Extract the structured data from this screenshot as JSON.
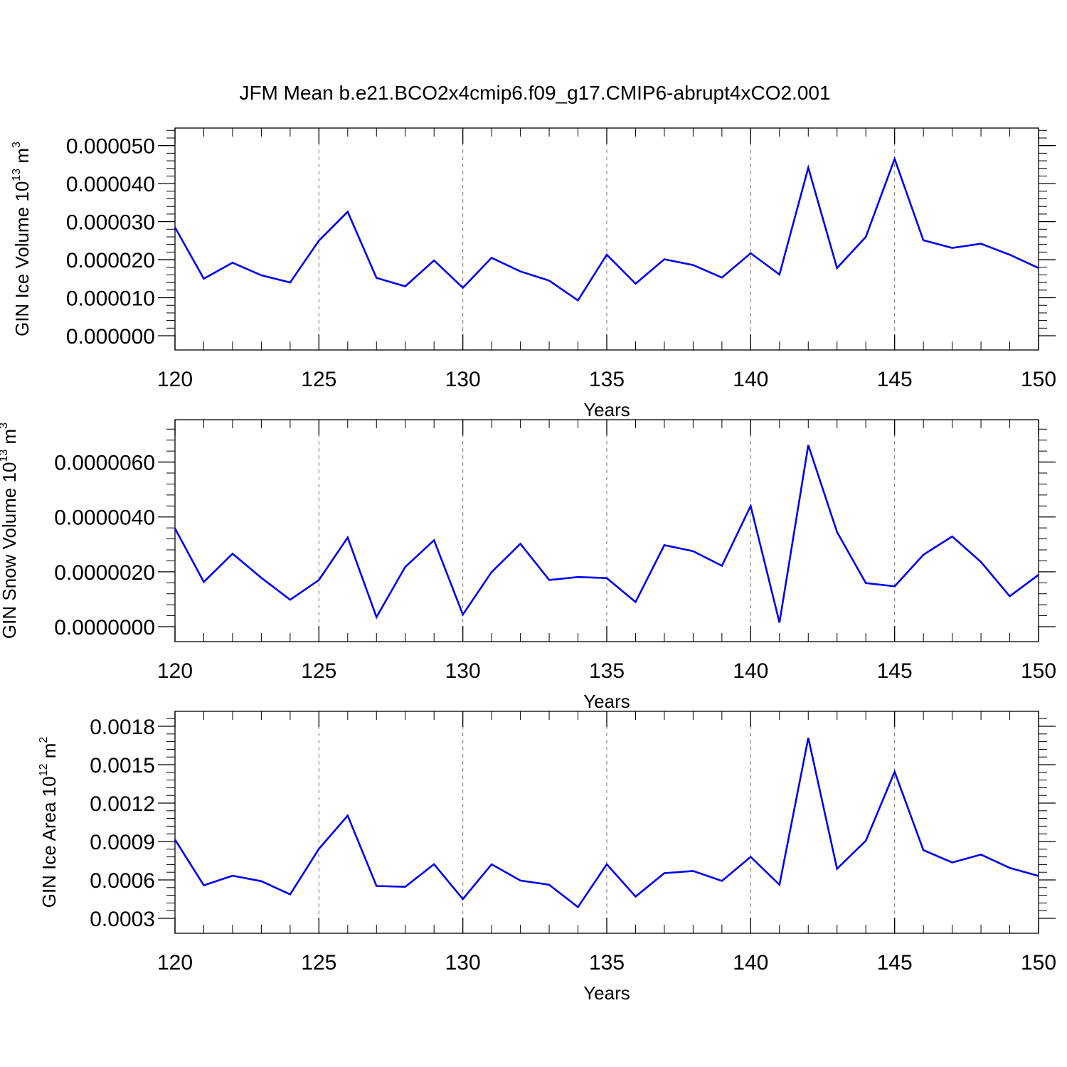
{
  "title": "JFM Mean b.e21.BCO2x4cmip6.f09_g17.CMIP6-abrupt4xCO2.001",
  "chart_data": [
    {
      "type": "line",
      "xlabel": "Years",
      "ylabel": "GIN Ice Volume 10",
      "ylabel_exp": "13",
      "ylabel_unit": " m",
      "ylabel_unit_exp": "3",
      "xlim": [
        120,
        150
      ],
      "ylim": [
        0.0,
        5.05e-05
      ],
      "xticks": [
        120,
        125,
        130,
        135,
        140,
        145,
        150
      ],
      "xtick_labels": [
        "120",
        "125",
        "130",
        "135",
        "140",
        "145",
        "150"
      ],
      "yticks": [
        0.0,
        1e-05,
        2e-05,
        3e-05,
        4e-05,
        5e-05
      ],
      "ytick_labels": [
        "0.000000",
        "0.000010",
        "0.000020",
        "0.000030",
        "0.000040",
        "0.000050"
      ],
      "grid": "vertical-dashed",
      "line_color": "#0000ee",
      "x": [
        120,
        121,
        122,
        123,
        124,
        125,
        126,
        127,
        128,
        129,
        130,
        131,
        132,
        133,
        134,
        135,
        136,
        137,
        138,
        139,
        140,
        141,
        142,
        143,
        144,
        145,
        146,
        147,
        148,
        149,
        150
      ],
      "values": [
        2.85e-05,
        1.5e-05,
        1.92e-05,
        1.59e-05,
        1.4e-05,
        2.5e-05,
        3.26e-05,
        1.52e-05,
        1.3e-05,
        1.98e-05,
        1.26e-05,
        2.05e-05,
        1.69e-05,
        1.45e-05,
        9.3e-06,
        2.13e-05,
        1.37e-05,
        2.01e-05,
        1.86e-05,
        1.53e-05,
        2.17e-05,
        1.61e-05,
        4.42e-05,
        1.78e-05,
        2.6e-05,
        4.65e-05,
        2.51e-05,
        2.31e-05,
        2.42e-05,
        2.13e-05,
        1.78e-05
      ]
    },
    {
      "type": "line",
      "xlabel": "Years",
      "ylabel": "GIN Snow Volume 10",
      "ylabel_exp": "13",
      "ylabel_unit": " m",
      "ylabel_unit_exp": "3",
      "xlim": [
        120,
        150
      ],
      "ylim": [
        0.0,
        7e-06
      ],
      "xticks": [
        120,
        125,
        130,
        135,
        140,
        145,
        150
      ],
      "xtick_labels": [
        "120",
        "125",
        "130",
        "135",
        "140",
        "145",
        "150"
      ],
      "yticks": [
        0.0,
        2e-06,
        4e-06,
        6e-06
      ],
      "ytick_labels": [
        "0.0000000",
        "0.0000020",
        "0.0000040",
        "0.0000060"
      ],
      "grid": "vertical-dashed",
      "line_color": "#0000ee",
      "x": [
        120,
        121,
        122,
        123,
        124,
        125,
        126,
        127,
        128,
        129,
        130,
        131,
        132,
        133,
        134,
        135,
        136,
        137,
        138,
        139,
        140,
        141,
        142,
        143,
        144,
        145,
        146,
        147,
        148,
        149,
        150
      ],
      "values": [
        3.58e-06,
        1.63e-06,
        2.66e-06,
        1.78e-06,
        9.8e-07,
        1.7e-06,
        3.25e-06,
        3.5e-07,
        2.18e-06,
        3.15e-06,
        4.4e-07,
        1.99e-06,
        3.02e-06,
        1.7e-06,
        1.81e-06,
        1.77e-06,
        9e-07,
        2.97e-06,
        2.75e-06,
        2.22e-06,
        4.4e-06,
        1.5e-07,
        6.62e-06,
        3.45e-06,
        1.59e-06,
        1.47e-06,
        2.62e-06,
        3.29e-06,
        2.36e-06,
        1.11e-06,
        1.89e-06
      ]
    },
    {
      "type": "line",
      "xlabel": "Years",
      "ylabel": "GIN Ice Area 10",
      "ylabel_exp": "12",
      "ylabel_unit": " m",
      "ylabel_unit_exp": "2",
      "xlim": [
        120,
        150
      ],
      "ylim": [
        0.0003,
        0.0018
      ],
      "xticks": [
        120,
        125,
        130,
        135,
        140,
        145,
        150
      ],
      "xtick_labels": [
        "120",
        "125",
        "130",
        "135",
        "140",
        "145",
        "150"
      ],
      "yticks": [
        0.0003,
        0.0006,
        0.0009,
        0.0012,
        0.0015,
        0.0018
      ],
      "ytick_labels": [
        "0.0003",
        "0.0006",
        "0.0009",
        "0.0012",
        "0.0015",
        "0.0018"
      ],
      "grid": "vertical-dashed",
      "line_color": "#0000ee",
      "x": [
        120,
        121,
        122,
        123,
        124,
        125,
        126,
        127,
        128,
        129,
        130,
        131,
        132,
        133,
        134,
        135,
        136,
        137,
        138,
        139,
        140,
        141,
        142,
        143,
        144,
        145,
        146,
        147,
        148,
        149,
        150
      ],
      "values": [
        0.000915,
        0.000558,
        0.000633,
        0.00059,
        0.000487,
        0.000842,
        0.001102,
        0.000553,
        0.000546,
        0.000723,
        0.00045,
        0.000722,
        0.000595,
        0.000562,
        0.000388,
        0.000722,
        0.00047,
        0.000653,
        0.00067,
        0.000592,
        0.00078,
        0.000562,
        0.00171,
        0.000687,
        0.000906,
        0.001445,
        0.000833,
        0.000736,
        0.000798,
        0.000694,
        0.000631
      ]
    }
  ]
}
